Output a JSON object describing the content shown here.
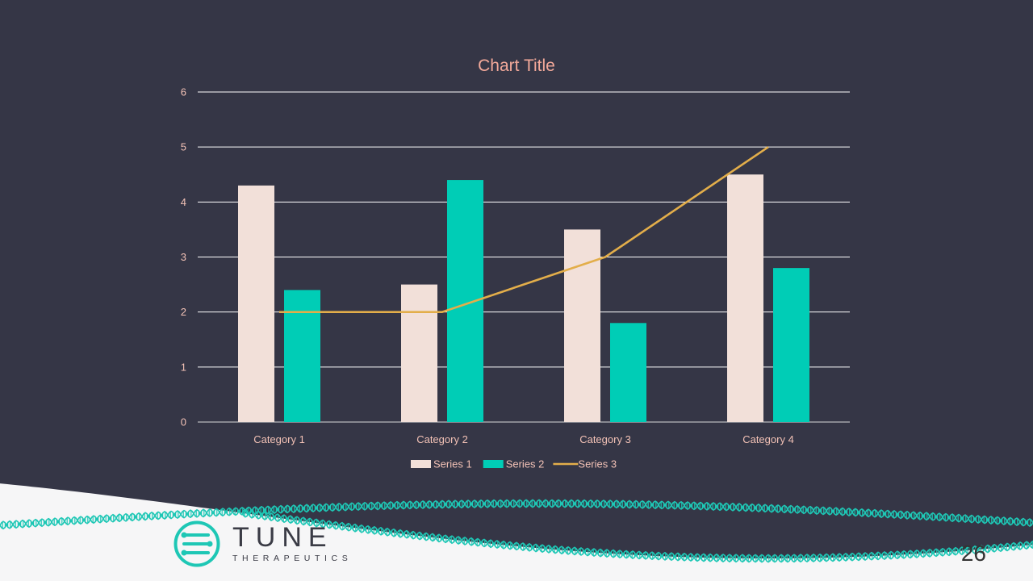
{
  "chart_data": {
    "type": "bar",
    "title": "Chart Title",
    "categories": [
      "Category 1",
      "Category 2",
      "Category 3",
      "Category 4"
    ],
    "series": [
      {
        "name": "Series 1",
        "type": "bar",
        "color": "#F2E0D9",
        "values": [
          4.3,
          2.5,
          3.5,
          4.5
        ]
      },
      {
        "name": "Series 2",
        "type": "bar",
        "color": "#00CDB6",
        "values": [
          2.4,
          4.4,
          1.8,
          2.8
        ]
      },
      {
        "name": "Series 3",
        "type": "line",
        "color": "#E3AE4A",
        "values": [
          2,
          2,
          3,
          5
        ]
      }
    ],
    "ylim": [
      0,
      6
    ],
    "yticks": [
      "0",
      "1",
      "2",
      "3",
      "4",
      "5",
      "6"
    ],
    "grid": true,
    "legend_position": "bottom",
    "colors": {
      "title": "#F3A99A",
      "tick_labels": "#F3C2B6",
      "gridline": "#FFFFFF"
    }
  },
  "footer": {
    "logo_word": "TUNE",
    "logo_sub": "THERAPEUTICS",
    "page_number": "26",
    "accent_color": "#1EC7B5"
  }
}
